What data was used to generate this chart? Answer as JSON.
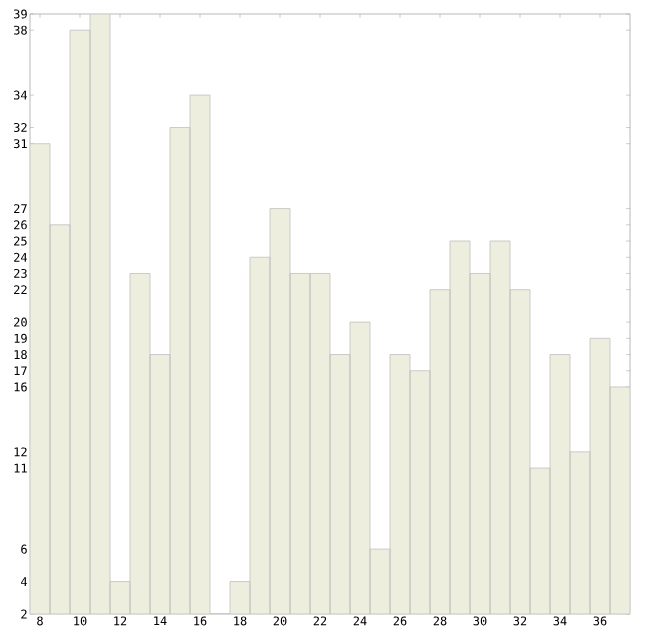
{
  "chart_data": {
    "type": "bar",
    "x": [
      8,
      9,
      10,
      11,
      12,
      13,
      14,
      15,
      16,
      17,
      18,
      19,
      20,
      21,
      22,
      23,
      24,
      25,
      26,
      27,
      28,
      29,
      30,
      31,
      32,
      33,
      34,
      35,
      36,
      37
    ],
    "values": [
      31,
      26,
      38,
      39,
      4,
      23,
      18,
      32,
      34,
      2,
      4,
      24,
      27,
      23,
      23,
      18,
      20,
      6,
      18,
      17,
      22,
      25,
      23,
      25,
      22,
      11,
      18,
      12,
      19,
      16
    ],
    "color": "#eeeedf",
    "xlim": [
      7.5,
      37.5
    ],
    "xticks": [
      8,
      10,
      12,
      14,
      16,
      18,
      20,
      22,
      24,
      26,
      28,
      30,
      32,
      34,
      36
    ],
    "ylim": [
      2,
      39
    ],
    "yticks": [
      2,
      4,
      6,
      11,
      12,
      16,
      17,
      18,
      19,
      20,
      22,
      23,
      24,
      25,
      26,
      27,
      31,
      32,
      34,
      38,
      39
    ],
    "grid": false
  }
}
